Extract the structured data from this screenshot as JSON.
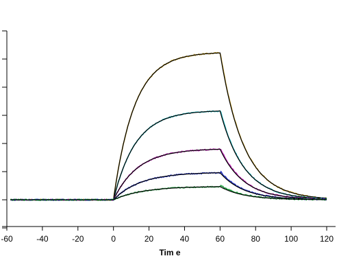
{
  "chart_data": {
    "type": "line",
    "title": "",
    "xlabel": "Tim e",
    "ylabel": "",
    "xlim": [
      -60,
      125
    ],
    "ylim": [
      -0.095,
      0.6
    ],
    "xticks": [
      -60,
      -40,
      -20,
      0,
      20,
      40,
      60,
      80,
      100,
      120
    ],
    "xtick_labels": [
      "-60",
      "-40",
      "-20",
      "0",
      "20",
      "40",
      "60",
      "80",
      "100",
      "120"
    ],
    "yticks": [
      -0.1,
      0.0,
      0.1,
      0.2,
      0.3,
      0.4,
      0.5,
      0.6
    ],
    "grid": false,
    "legend": "none",
    "association_start": 0,
    "dissociation_start": 60,
    "x_end": 120,
    "series": [
      {
        "plateau": 0.525,
        "kon": 0.085,
        "koff": 0.075,
        "color": "#c8a020",
        "fit_color": "#000000"
      },
      {
        "plateau": 0.318,
        "kon": 0.08,
        "koff": 0.075,
        "color": "#20b8c0",
        "fit_color": "#000000"
      },
      {
        "plateau": 0.182,
        "kon": 0.072,
        "koff": 0.075,
        "color": "#c028b8",
        "fit_color": "#000000"
      },
      {
        "plateau": 0.098,
        "kon": 0.065,
        "koff": 0.075,
        "color": "#2030c0",
        "fit_color": "#000000"
      },
      {
        "plateau": 0.048,
        "kon": 0.06,
        "koff": 0.075,
        "color": "#20a040",
        "fit_color": "#000000"
      }
    ]
  }
}
